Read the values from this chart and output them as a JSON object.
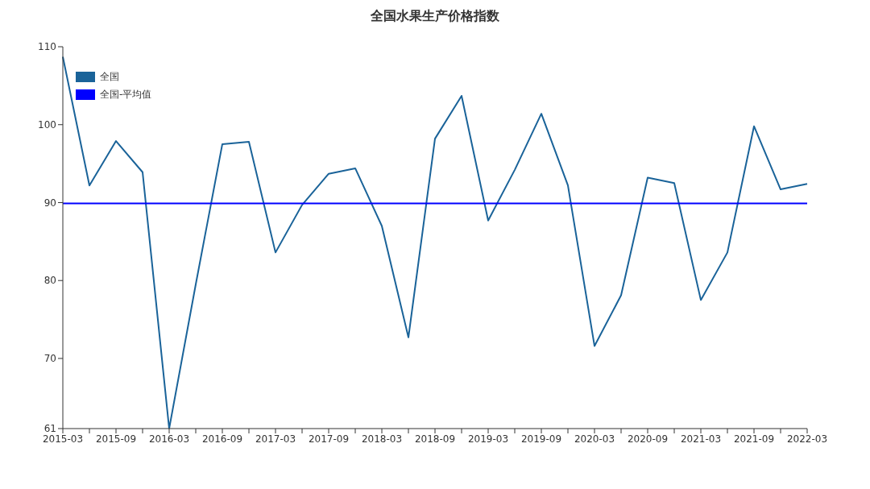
{
  "chart_data": {
    "type": "line",
    "title": "全国水果生产价格指数",
    "categories": [
      "2015-03",
      null,
      "2015-09",
      null,
      "2016-03",
      null,
      "2016-09",
      null,
      "2017-03",
      null,
      "2017-09",
      null,
      "2018-03",
      null,
      "2018-09",
      null,
      "2019-03",
      null,
      "2019-09",
      null,
      "2020-03",
      null,
      "2020-09",
      null,
      "2021-03",
      null,
      "2021-09",
      null,
      "2022-03"
    ],
    "series": [
      {
        "name": "全国",
        "color": "#1a6399",
        "values": [
          108.7,
          92.2,
          97.9,
          93.9,
          61,
          79.5,
          97.5,
          97.8,
          83.6,
          89.7,
          93.7,
          94.4,
          87.0,
          72.7,
          98.2,
          103.7,
          87.7,
          94.2,
          101.4,
          92.2,
          71.6,
          78.1,
          93.2,
          92.5,
          77.5,
          83.6,
          99.8,
          91.7,
          92.4
        ]
      },
      {
        "name": "全国-平均值",
        "color": "#0000ff",
        "values": [
          89.9,
          89.9,
          89.9,
          89.9,
          89.9,
          89.9,
          89.9,
          89.9,
          89.9,
          89.9,
          89.9,
          89.9,
          89.9,
          89.9,
          89.9,
          89.9,
          89.9,
          89.9,
          89.9,
          89.9,
          89.9,
          89.9,
          89.9,
          89.9,
          89.9,
          89.9,
          89.9,
          89.9,
          89.9
        ]
      }
    ],
    "ylim": [
      61,
      110
    ],
    "yticks": [
      61,
      70,
      80,
      90,
      100,
      110
    ],
    "grid": false,
    "legend": "top left",
    "marker": "none",
    "line_style": "solid"
  }
}
